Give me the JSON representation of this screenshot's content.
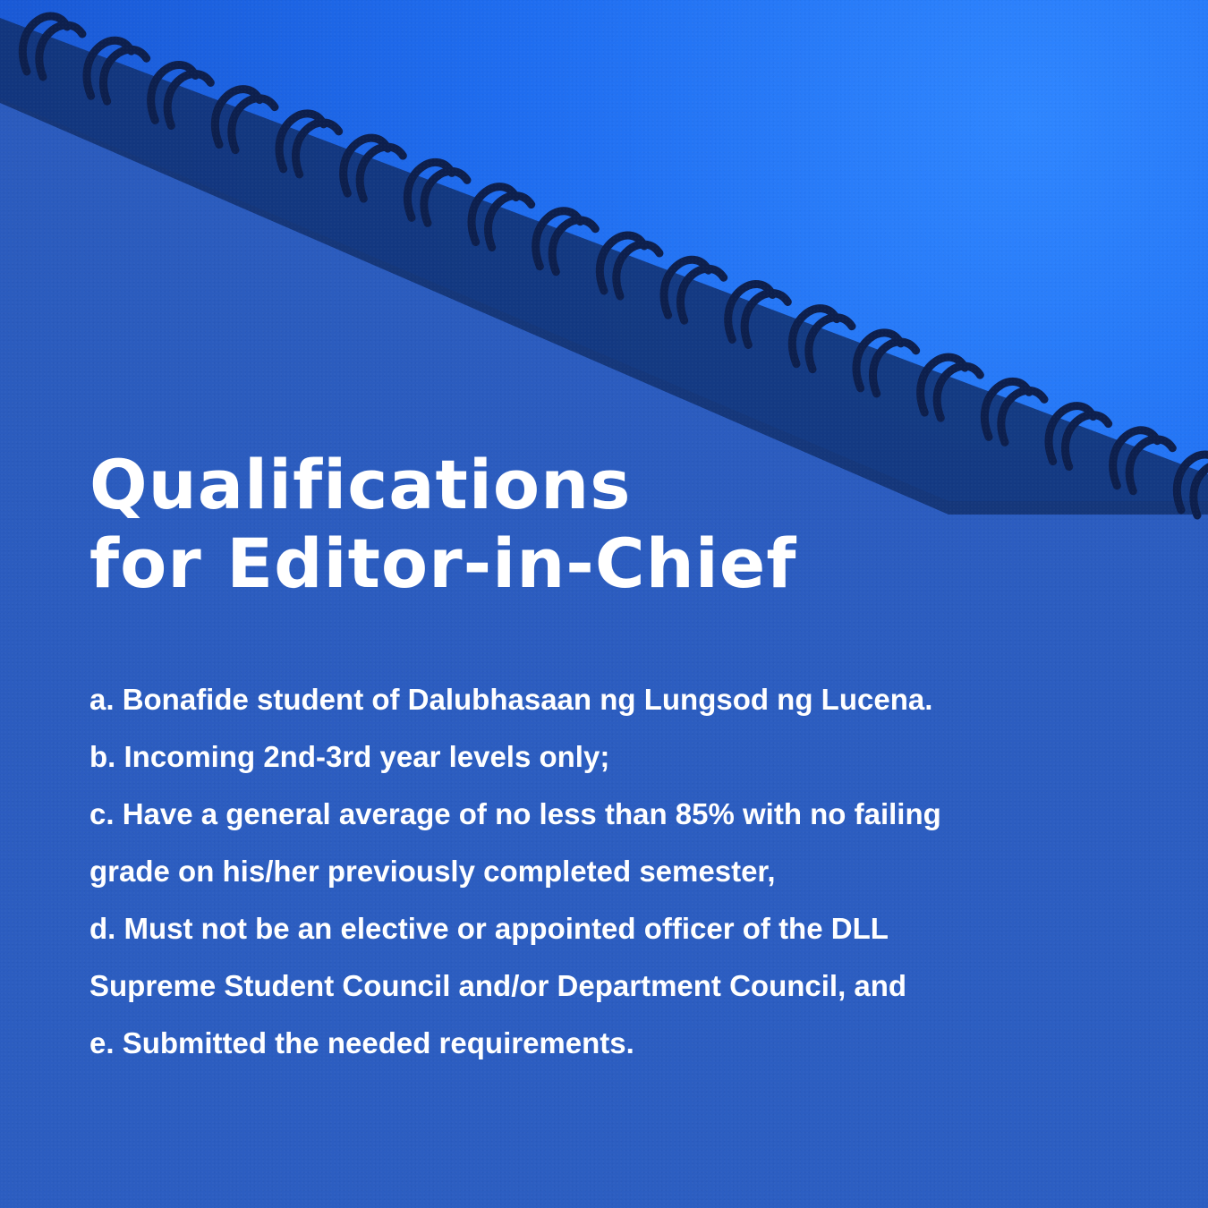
{
  "colors": {
    "sky": "#1f6df0",
    "notebook": "#2c5ec2",
    "binding": "#0d1f4d",
    "text": "#ffffff"
  },
  "title": {
    "line1": "Qualifications",
    "line2": "for Editor-in-Chief"
  },
  "qualifications": [
    "a. Bonafide student of Dalubhasaan ng Lungsod ng Lucena.",
    "b. Incoming 2nd-3rd year levels only;",
    "c. Have a general average of no less than 85% with no failing",
    "grade on his/her previously completed semester,",
    "d. Must not be an elective or appointed officer of the DLL",
    "Supreme Student Council and/or Department Council, and",
    "e. Submitted the needed requirements."
  ]
}
